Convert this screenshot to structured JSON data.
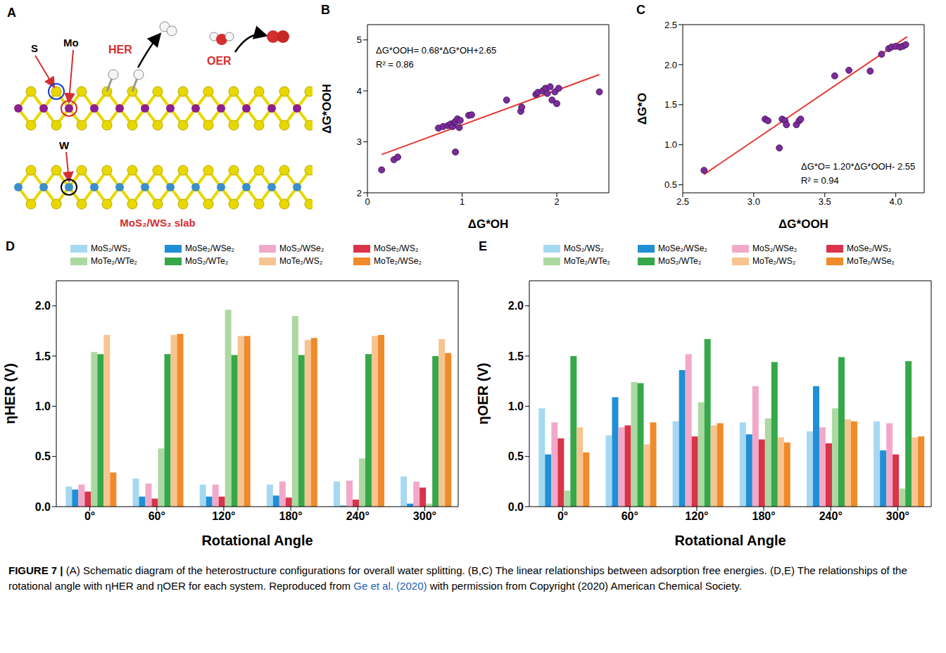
{
  "diagram": {
    "panel": "A",
    "atom_labels": [
      "S",
      "Mo",
      "W"
    ],
    "reactions": [
      "HER",
      "OER"
    ],
    "slab_label": "MoS₂/WS₂ slab"
  },
  "chart_data": [
    {
      "type": "scatter",
      "panel": "B",
      "x_label": "ΔG*OH",
      "y_label": "ΔG*OOH",
      "annotations": [
        "ΔG*OOH= 0.68*ΔG*OH+2.65",
        "R² = 0.86"
      ],
      "color": "#7b2d9b",
      "x": [
        0.15,
        0.28,
        0.32,
        0.75,
        0.8,
        0.85,
        0.88,
        0.9,
        0.92,
        0.93,
        0.95,
        0.93,
        0.97,
        0.98,
        1.07,
        1.1,
        1.47,
        1.62,
        1.63,
        1.78,
        1.8,
        1.85,
        1.88,
        1.9,
        1.93,
        1.95,
        1.98,
        2.0,
        2.02,
        2.45
      ],
      "y": [
        2.45,
        2.65,
        2.7,
        3.27,
        3.3,
        3.32,
        3.35,
        3.3,
        3.38,
        3.4,
        3.45,
        2.8,
        3.28,
        3.42,
        3.52,
        3.53,
        3.82,
        3.6,
        3.68,
        3.93,
        3.97,
        4.0,
        4.05,
        3.95,
        4.08,
        3.82,
        3.98,
        3.75,
        4.05,
        3.98
      ],
      "fit": {
        "x": [
          0.15,
          2.45
        ],
        "y": [
          2.75,
          4.32
        ],
        "color": "#e53935"
      },
      "xlim": [
        0,
        2.55
      ],
      "ylim": [
        2,
        5.3
      ],
      "xticks": [
        0,
        1,
        2
      ],
      "yticks": [
        2,
        3,
        4,
        5
      ],
      "grid": false
    },
    {
      "type": "scatter",
      "panel": "C",
      "x_label": "ΔG*OOH",
      "y_label": "ΔG*O",
      "annotations": [
        "ΔG*O= 1.20*ΔG*OOH- 2.55",
        "R² = 0.94"
      ],
      "color": "#7b2d9b",
      "x": [
        2.65,
        3.08,
        3.1,
        3.18,
        3.2,
        3.22,
        3.23,
        3.3,
        3.32,
        3.33,
        3.57,
        3.67,
        3.82,
        3.9,
        3.95,
        3.97,
        4.0,
        4.03,
        4.05,
        4.07
      ],
      "y": [
        0.68,
        1.32,
        1.3,
        0.96,
        1.32,
        1.3,
        1.25,
        1.25,
        1.3,
        1.32,
        1.86,
        1.93,
        1.92,
        2.13,
        2.2,
        2.22,
        2.23,
        2.22,
        2.23,
        2.25
      ],
      "fit": {
        "x": [
          2.65,
          4.08
        ],
        "y": [
          0.63,
          2.35
        ],
        "color": "#e53935"
      },
      "xlim": [
        2.5,
        4.2
      ],
      "ylim": [
        0.4,
        2.5
      ],
      "xticks": [
        2.5,
        {
          "value": 3,
          "label": "3.0"
        },
        3.5,
        {
          "value": 4,
          "label": "4.0"
        }
      ],
      "yticks": [
        0.5,
        {
          "value": 1,
          "label": "1.0"
        },
        1.5,
        {
          "value": 2,
          "label": "2.0"
        },
        2.5
      ],
      "grid": false
    },
    {
      "type": "bar",
      "panel": "D",
      "x_label": "Rotational Angle",
      "y_label": "ηHER (V)",
      "legend": "top",
      "grid": false,
      "categories": [
        "0°",
        "60°",
        "120°",
        "180°",
        "240°",
        "300°"
      ],
      "ylim": [
        0,
        2.25
      ],
      "yticks": [
        {
          "value": 0,
          "label": "0.0"
        },
        0.5,
        {
          "value": 1,
          "label": "1.0"
        },
        1.5,
        {
          "value": 2,
          "label": "2.0"
        }
      ],
      "series": [
        {
          "name": "MoS₂/WS₂",
          "color": "#a6d8f2",
          "values": [
            0.2,
            0.28,
            0.22,
            0.22,
            0.25,
            0.3
          ]
        },
        {
          "name": "MoSe₂/WSe₂",
          "color": "#1f8fd6",
          "values": [
            0.17,
            0.1,
            0.1,
            0.11,
            0.01,
            0.03
          ]
        },
        {
          "name": "MoS₂/WSe₂",
          "color": "#f2a9c9",
          "values": [
            0.22,
            0.23,
            0.22,
            0.25,
            0.26,
            0.25
          ]
        },
        {
          "name": "MoSe₂/WS₂",
          "color": "#d9344a",
          "values": [
            0.15,
            0.08,
            0.1,
            0.09,
            0.07,
            0.19
          ]
        },
        {
          "name": "MoTe₂/WTe₂",
          "color": "#acd9a2",
          "values": [
            1.54,
            0.58,
            1.96,
            1.9,
            0.48,
            0.03
          ]
        },
        {
          "name": "MoS₂/WTe₂",
          "color": "#36a84a",
          "values": [
            1.52,
            1.52,
            1.51,
            1.51,
            1.52,
            1.5
          ]
        },
        {
          "name": "MoTe₂/WS₂",
          "color": "#f6c490",
          "values": [
            1.71,
            1.71,
            1.7,
            1.66,
            1.7,
            1.67
          ]
        },
        {
          "name": "MoTe₂/WSe₂",
          "color": "#f08a2a",
          "values": [
            0.34,
            1.72,
            1.7,
            1.68,
            1.71,
            1.53
          ]
        }
      ]
    },
    {
      "type": "bar",
      "panel": "E",
      "x_label": "Rotational Angle",
      "y_label": "ηOER (V)",
      "legend": "top",
      "grid": false,
      "categories": [
        "0°",
        "60°",
        "120°",
        "180°",
        "240°",
        "300°"
      ],
      "ylim": [
        0,
        2.25
      ],
      "yticks": [
        {
          "value": 0,
          "label": "0.0"
        },
        0.5,
        {
          "value": 1,
          "label": "1.0"
        },
        1.5,
        {
          "value": 2,
          "label": "2.0"
        }
      ],
      "series": [
        {
          "name": "MoS₂/WS₂",
          "color": "#a6d8f2",
          "values": [
            0.98,
            0.71,
            0.85,
            0.84,
            0.75,
            0.85
          ]
        },
        {
          "name": "MoSe₂/WSe₂",
          "color": "#1f8fd6",
          "values": [
            0.52,
            1.09,
            1.36,
            0.72,
            1.2,
            0.56
          ]
        },
        {
          "name": "MoS₂/WSe₂",
          "color": "#f2a9c9",
          "values": [
            0.84,
            0.79,
            1.52,
            1.2,
            0.79,
            0.83
          ]
        },
        {
          "name": "MoSe₂/WS₂",
          "color": "#d9344a",
          "values": [
            0.68,
            0.81,
            0.7,
            0.67,
            0.63,
            0.52
          ]
        },
        {
          "name": "MoTe₂/WTe₂",
          "color": "#acd9a2",
          "values": [
            0.16,
            1.24,
            1.04,
            0.88,
            0.98,
            0.18
          ]
        },
        {
          "name": "MoS₂/WTe₂",
          "color": "#36a84a",
          "values": [
            1.5,
            1.23,
            1.67,
            1.44,
            1.49,
            1.45
          ]
        },
        {
          "name": "MoTe₂/WS₂",
          "color": "#f6c490",
          "values": [
            0.79,
            0.62,
            0.81,
            0.69,
            0.87,
            0.69
          ]
        },
        {
          "name": "MoTe₂/WSe₂",
          "color": "#f08a2a",
          "values": [
            0.54,
            0.84,
            0.83,
            0.64,
            0.85,
            0.7
          ]
        }
      ]
    }
  ],
  "caption": {
    "figure": "FIGURE 7 |",
    "text_before": "(A) Schematic diagram of the heterostructure configurations for overall water splitting. (B,C) The linear relationships between adsorption free energies. (D,E) The relationships of the rotational angle with ηHER and ηOER for each system. Reproduced from",
    "citation": "Ge et al. (2020)",
    "text_after": "with permission from Copyright (2020) American Chemical Society."
  }
}
